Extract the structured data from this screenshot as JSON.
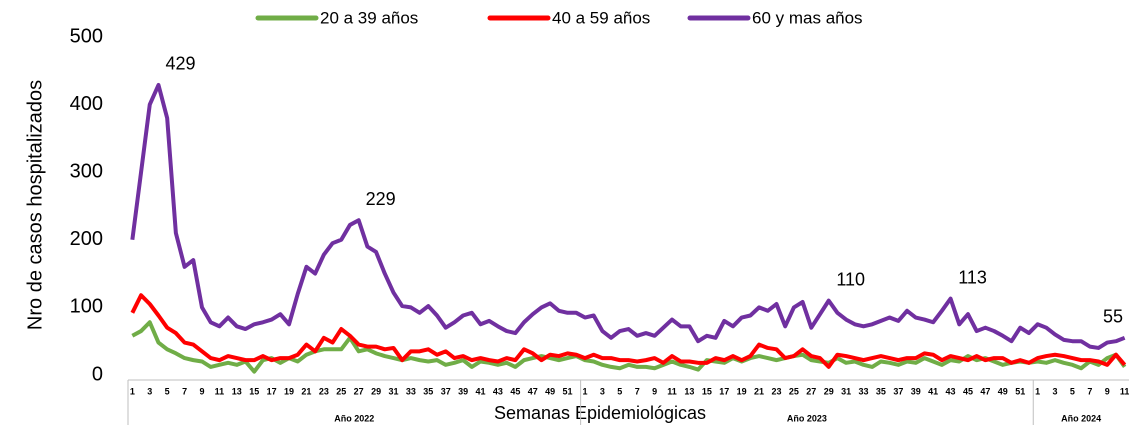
{
  "chart_data": {
    "type": "line",
    "y_label": "Nro de casos hospitalizados",
    "x_label": "Semanas Epidemiológicas",
    "ylim": [
      0,
      500
    ],
    "yticks": [
      0,
      100,
      200,
      300,
      400,
      500
    ],
    "grid": false,
    "legend": "top",
    "groups": [
      {
        "label": "Año 2022",
        "categories": [
          "1",
          null,
          "3",
          null,
          "5",
          null,
          "7",
          null,
          "9",
          null,
          "11",
          null,
          "13",
          null,
          "15",
          null,
          "17",
          null,
          "19",
          null,
          "21",
          null,
          "23",
          null,
          "25",
          null,
          "27",
          null,
          "29",
          null,
          "31",
          null,
          "33",
          null,
          "35",
          null,
          "37",
          null,
          "39",
          null,
          "41",
          null,
          "43",
          null,
          "45",
          null,
          "47",
          null,
          "49",
          null,
          "51",
          null
        ]
      },
      {
        "label": "Año 2023",
        "categories": [
          "1",
          null,
          "3",
          null,
          "5",
          null,
          "7",
          null,
          "9",
          null,
          "11",
          null,
          "13",
          null,
          "15",
          null,
          "17",
          null,
          "19",
          null,
          "21",
          null,
          "23",
          null,
          "25",
          null,
          "27",
          null,
          "29",
          null,
          "31",
          null,
          "33",
          null,
          "35",
          null,
          "37",
          null,
          "39",
          null,
          "41",
          null,
          "43",
          null,
          "45",
          null,
          "47",
          null,
          "49",
          null,
          "51",
          null
        ]
      },
      {
        "label": "Año 2024",
        "categories": [
          "1",
          null,
          "3",
          null,
          "5",
          null,
          "7",
          null,
          "9",
          null,
          "11"
        ]
      }
    ],
    "series": [
      {
        "name": "20 a 39 años",
        "color": "#70ad47",
        "values": [
          58,
          65,
          78,
          48,
          38,
          32,
          25,
          22,
          20,
          12,
          15,
          18,
          15,
          20,
          5,
          22,
          25,
          18,
          25,
          20,
          30,
          35,
          38,
          38,
          38,
          55,
          35,
          38,
          32,
          28,
          25,
          22,
          25,
          22,
          20,
          22,
          15,
          18,
          22,
          12,
          20,
          18,
          15,
          18,
          12,
          22,
          25,
          28,
          25,
          22,
          25,
          28,
          22,
          20,
          15,
          12,
          10,
          15,
          12,
          12,
          10,
          15,
          20,
          15,
          12,
          8,
          22,
          20,
          18,
          25,
          20,
          25,
          28,
          25,
          22,
          25,
          28,
          30,
          22,
          20,
          18,
          25,
          18,
          20,
          15,
          12,
          20,
          18,
          15,
          20,
          18,
          25,
          20,
          15,
          22,
          20,
          28,
          22,
          25,
          20,
          15,
          18,
          20,
          18,
          20,
          18,
          22,
          18,
          15,
          10,
          20,
          15,
          25,
          30,
          12
        ]
      },
      {
        "name": "40 a 59 años",
        "color": "#ff0000",
        "values": [
          92,
          118,
          105,
          88,
          70,
          62,
          48,
          45,
          35,
          25,
          22,
          28,
          25,
          22,
          22,
          28,
          22,
          25,
          25,
          30,
          45,
          35,
          55,
          48,
          68,
          58,
          45,
          42,
          42,
          38,
          40,
          22,
          35,
          35,
          38,
          30,
          35,
          25,
          28,
          22,
          25,
          22,
          20,
          25,
          22,
          38,
          32,
          22,
          30,
          28,
          32,
          30,
          25,
          30,
          25,
          25,
          22,
          22,
          20,
          22,
          25,
          18,
          28,
          20,
          20,
          18,
          18,
          25,
          22,
          28,
          22,
          28,
          45,
          40,
          38,
          25,
          28,
          38,
          28,
          25,
          12,
          30,
          28,
          25,
          22,
          25,
          28,
          25,
          22,
          25,
          25,
          32,
          30,
          22,
          28,
          25,
          22,
          28,
          22,
          25,
          25,
          18,
          22,
          18,
          25,
          28,
          30,
          28,
          25,
          22,
          22,
          20,
          15,
          30,
          15
        ]
      },
      {
        "name": "60 y mas años",
        "color": "#7030a0",
        "values": [
          200,
          300,
          400,
          429,
          380,
          210,
          160,
          170,
          100,
          78,
          72,
          85,
          72,
          68,
          75,
          78,
          82,
          90,
          75,
          120,
          160,
          150,
          178,
          195,
          200,
          222,
          229,
          190,
          182,
          150,
          122,
          102,
          100,
          92,
          102,
          88,
          70,
          78,
          88,
          92,
          75,
          80,
          72,
          65,
          62,
          78,
          90,
          100,
          106,
          95,
          92,
          92,
          85,
          88,
          65,
          55,
          65,
          68,
          58,
          62,
          58,
          70,
          82,
          72,
          72,
          50,
          58,
          55,
          80,
          72,
          85,
          88,
          100,
          95,
          105,
          72,
          100,
          108,
          70,
          90,
          110,
          92,
          82,
          75,
          72,
          75,
          80,
          85,
          80,
          95,
          85,
          82,
          78,
          95,
          113,
          75,
          90,
          65,
          70,
          65,
          58,
          50,
          70,
          62,
          75,
          70,
          60,
          52,
          50,
          50,
          42,
          40,
          48,
          50,
          55
        ],
        "value_labels": [
          null,
          null,
          null,
          "429",
          null,
          null,
          null,
          null,
          null,
          null,
          null,
          null,
          null,
          null,
          null,
          null,
          null,
          null,
          null,
          null,
          null,
          null,
          null,
          null,
          null,
          null,
          "229",
          null,
          null,
          null,
          null,
          null,
          null,
          null,
          null,
          null,
          null,
          null,
          null,
          null,
          null,
          null,
          null,
          null,
          null,
          null,
          null,
          null,
          null,
          null,
          null,
          null,
          null,
          null,
          null,
          null,
          null,
          null,
          null,
          null,
          null,
          null,
          null,
          null,
          null,
          null,
          null,
          null,
          null,
          null,
          null,
          null,
          null,
          null,
          null,
          null,
          null,
          null,
          null,
          null,
          "110",
          null,
          null,
          null,
          null,
          null,
          null,
          null,
          null,
          null,
          null,
          null,
          null,
          null,
          "113",
          null,
          null,
          null,
          null,
          null,
          null,
          null,
          null,
          null,
          null,
          null,
          null,
          null,
          null,
          null,
          null,
          null,
          null,
          null,
          "55"
        ]
      }
    ]
  }
}
